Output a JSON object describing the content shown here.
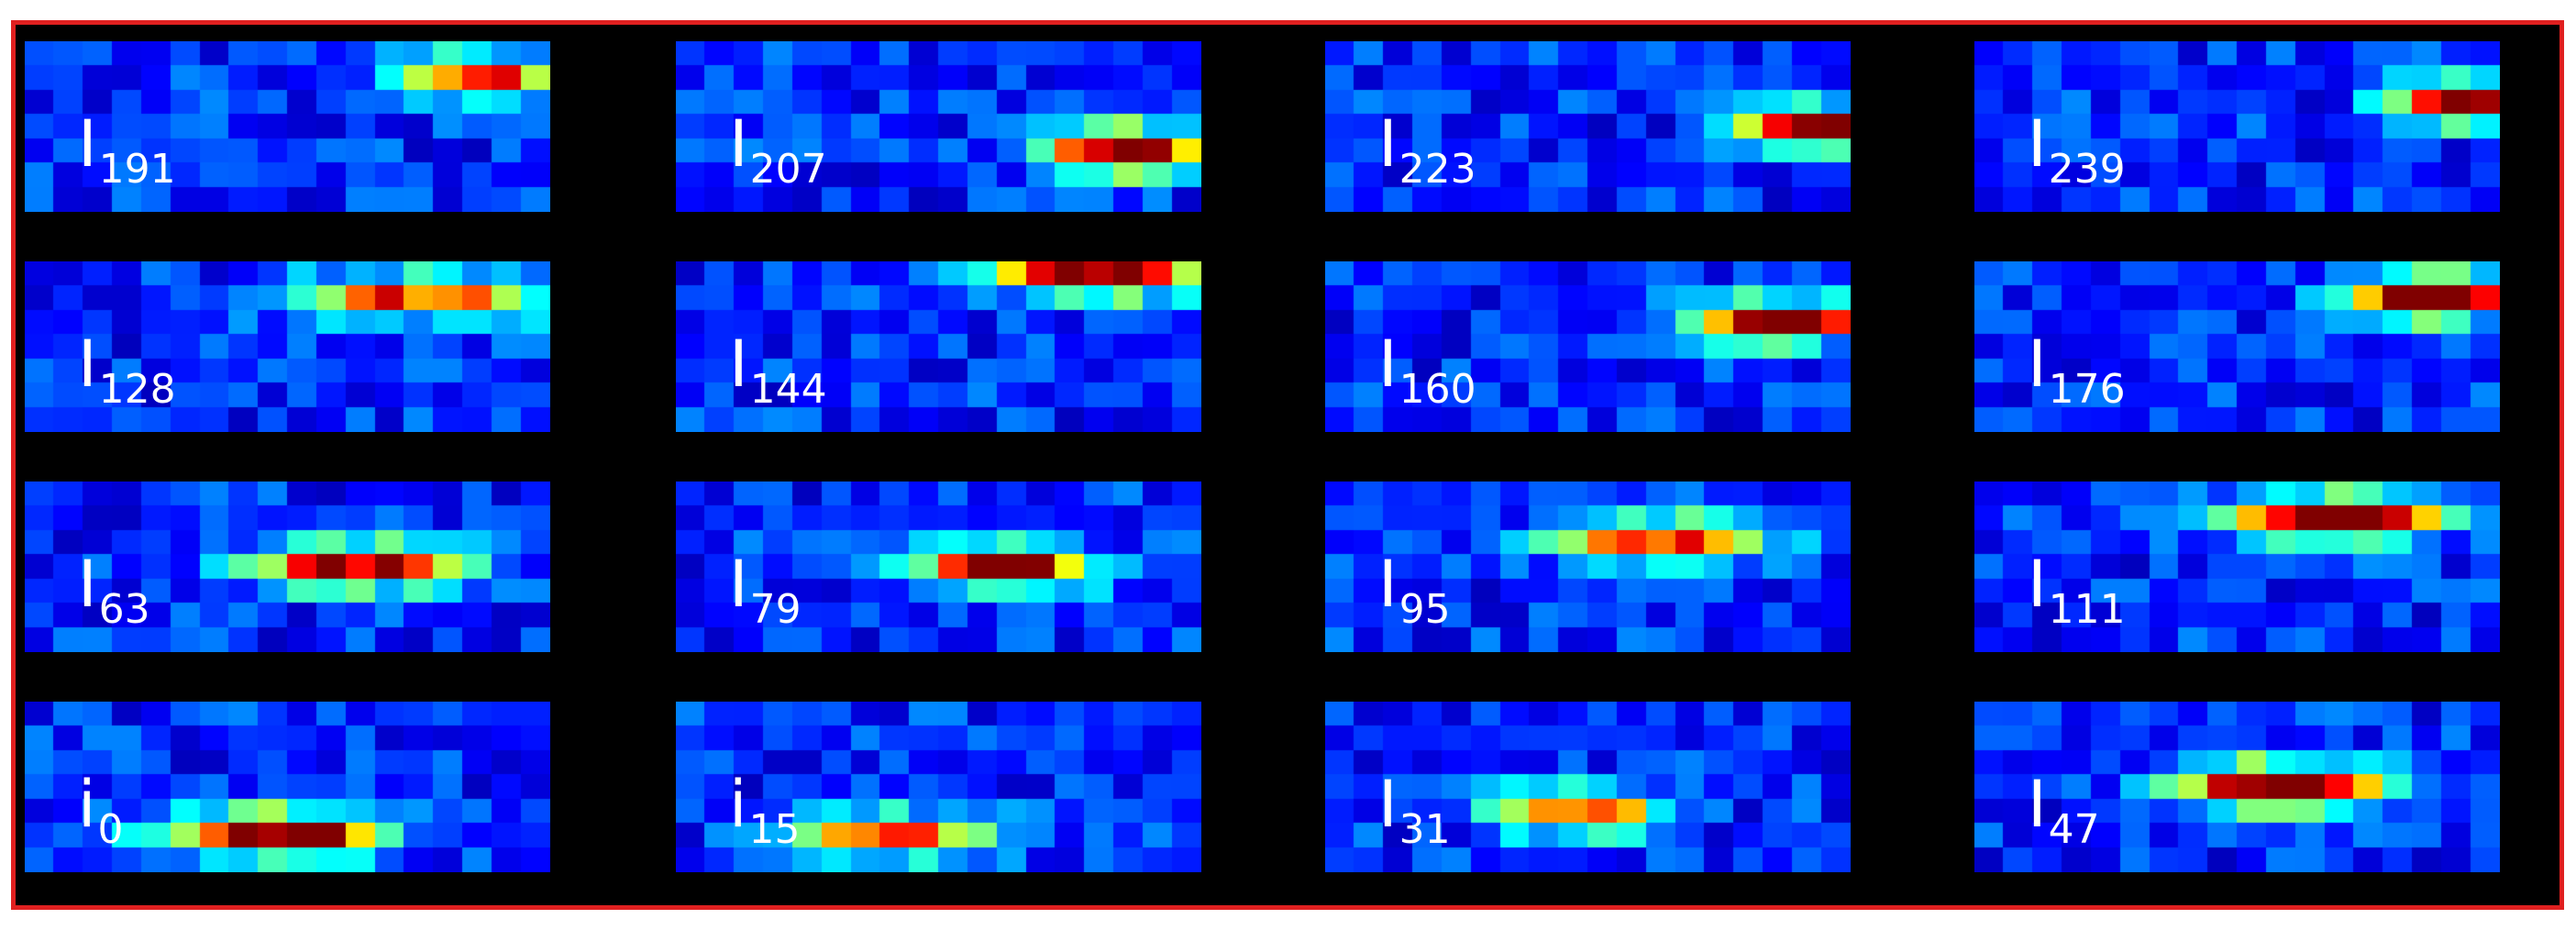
{
  "figure": {
    "colormap": "jet",
    "frame_color": "#e02020",
    "background": "#000000",
    "rows": [
      [
        {
          "main": "I",
          "sub": "191",
          "hotspot": {
            "col": 15,
            "row": 1,
            "width": 3,
            "peak": 0.72
          }
        },
        {
          "main": "I",
          "sub": "207",
          "hotspot": {
            "col": 15,
            "row": 4,
            "width": 3,
            "peak": 0.95
          }
        },
        {
          "main": "I",
          "sub": "223",
          "hotspot": {
            "col": 16,
            "row": 3,
            "width": 2,
            "peak": 0.9
          }
        },
        {
          "main": "I",
          "sub": "239",
          "hotspot": {
            "col": 16,
            "row": 2,
            "width": 2,
            "peak": 1.0
          }
        }
      ],
      [
        {
          "main": "I",
          "sub": "128",
          "hotspot": {
            "col": 13,
            "row": 1,
            "width": 5,
            "peak": 0.72
          }
        },
        {
          "main": "I",
          "sub": "144",
          "hotspot": {
            "col": 14,
            "row": 0,
            "width": 4,
            "peak": 0.95
          }
        },
        {
          "main": "I",
          "sub": "160",
          "hotspot": {
            "col": 15,
            "row": 2,
            "width": 3,
            "peak": 1.0
          }
        },
        {
          "main": "I",
          "sub": "176",
          "hotspot": {
            "col": 15,
            "row": 1,
            "width": 3,
            "peak": 0.98
          }
        }
      ],
      [
        {
          "main": "I",
          "sub": "63",
          "hotspot": {
            "col": 11,
            "row": 3,
            "width": 4,
            "peak": 0.88
          }
        },
        {
          "main": "I",
          "sub": "79",
          "hotspot": {
            "col": 11,
            "row": 3,
            "width": 3,
            "peak": 0.95
          }
        },
        {
          "main": "I",
          "sub": "95",
          "hotspot": {
            "col": 11,
            "row": 2,
            "width": 4,
            "peak": 0.75
          }
        },
        {
          "main": "I",
          "sub": "111",
          "hotspot": {
            "col": 12,
            "row": 1,
            "width": 4,
            "peak": 1.0
          }
        }
      ],
      [
        {
          "main": "i",
          "sub": "0",
          "hotspot": {
            "col": 8,
            "row": 5,
            "width": 4,
            "peak": 1.0
          }
        },
        {
          "main": "i",
          "sub": "15",
          "hotspot": {
            "col": 7,
            "row": 5,
            "width": 4,
            "peak": 0.65
          }
        },
        {
          "main": "I",
          "sub": "31",
          "hotspot": {
            "col": 8,
            "row": 4,
            "width": 3,
            "peak": 0.75
          }
        },
        {
          "main": "I",
          "sub": "47",
          "hotspot": {
            "col": 10,
            "row": 3,
            "width": 4,
            "peak": 0.95
          }
        }
      ]
    ]
  }
}
